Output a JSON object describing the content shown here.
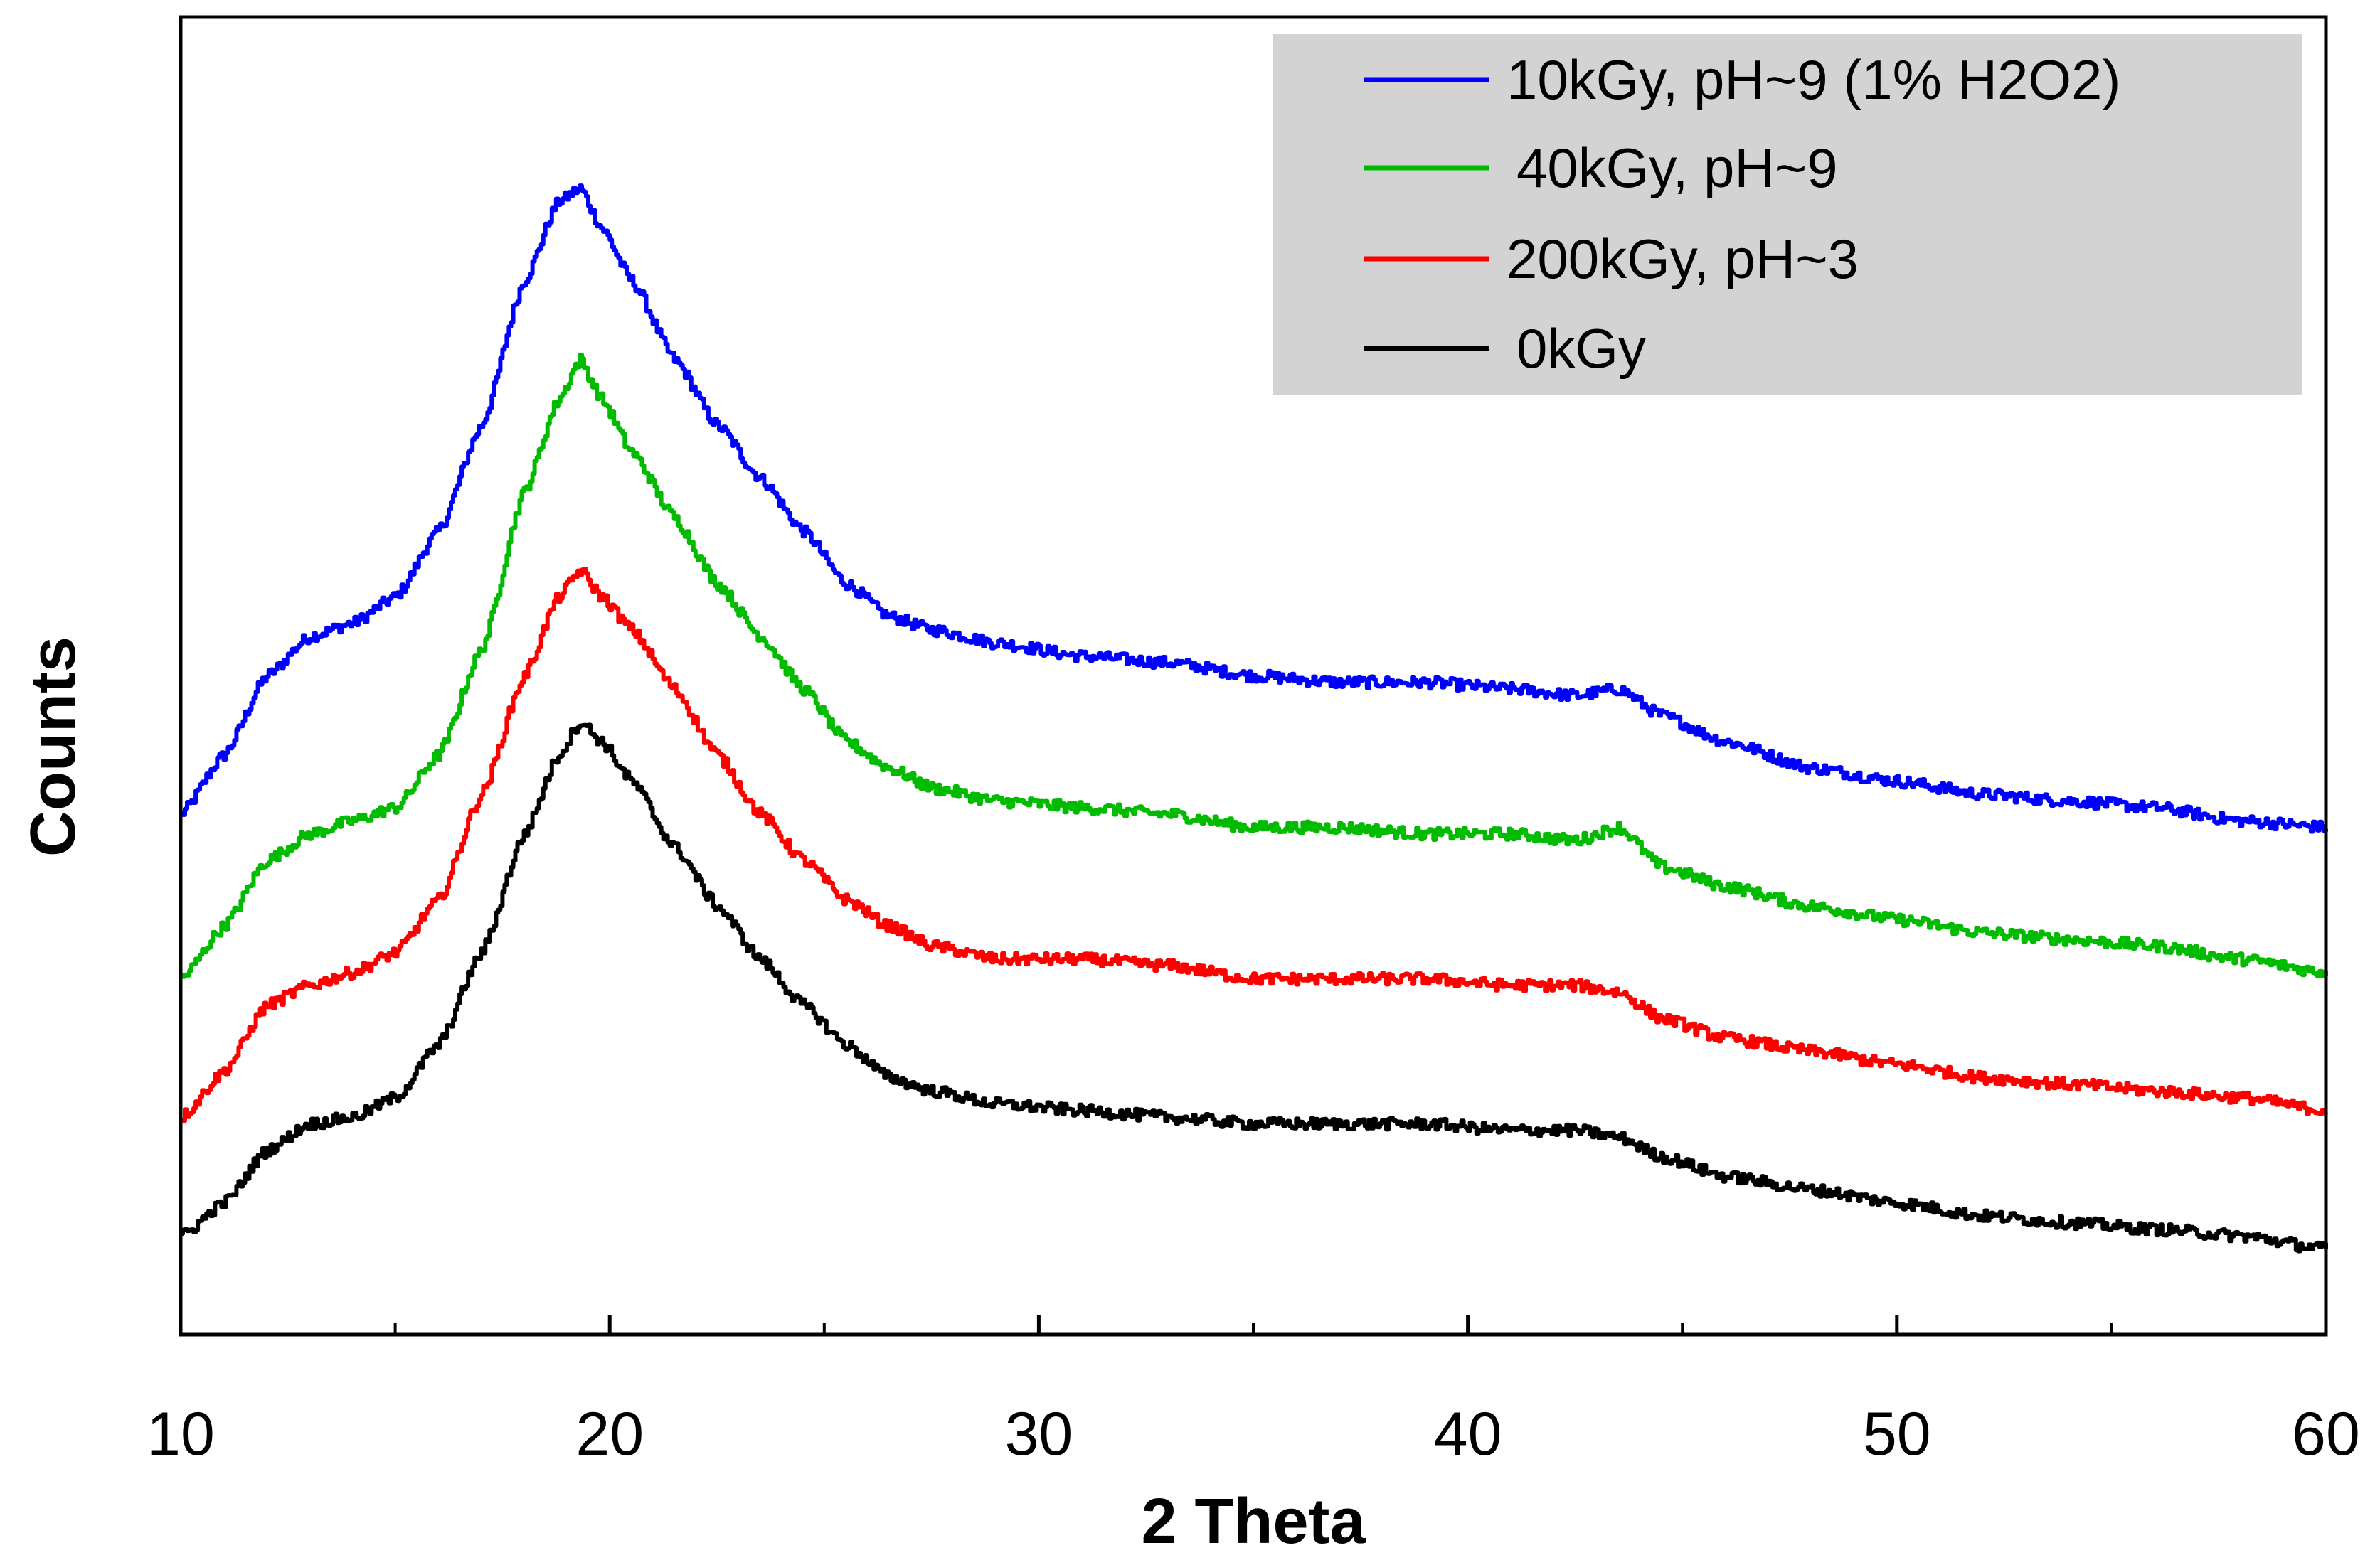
{
  "chart_data": {
    "type": "line",
    "title": "",
    "xlabel": "2 Theta",
    "ylabel": "Counts",
    "xlim": [
      10,
      60
    ],
    "ylim": [
      0,
      100
    ],
    "x_ticks": [
      10,
      20,
      30,
      40,
      50,
      60
    ],
    "x_tick_labels": [
      "10",
      "20",
      "30",
      "40",
      "50",
      "60"
    ],
    "y_ticks_shown": false,
    "grid": false,
    "legend_position": "top-right",
    "legend_background": "#d3d3d3",
    "series": [
      {
        "name": "10kGy, pH~9 (1% H2O2)",
        "label": "10kGy, pH~9 (1% H2O2)",
        "color": "#0000ff",
        "points": [
          [
            10,
            39.5
          ],
          [
            11,
            44
          ],
          [
            12,
            50
          ],
          [
            13,
            53
          ],
          [
            14,
            54
          ],
          [
            15,
            56
          ],
          [
            16,
            61
          ],
          [
            17,
            69
          ],
          [
            18,
            80
          ],
          [
            18.8,
            86
          ],
          [
            19.3,
            87
          ],
          [
            19.8,
            84
          ],
          [
            20.5,
            80
          ],
          [
            21.5,
            74
          ],
          [
            22.5,
            69
          ],
          [
            23.5,
            65
          ],
          [
            24.5,
            61
          ],
          [
            25.5,
            57
          ],
          [
            26.5,
            54.5
          ],
          [
            27.5,
            53.5
          ],
          [
            29,
            52.5
          ],
          [
            31,
            51.5
          ],
          [
            33,
            51
          ],
          [
            35,
            50
          ],
          [
            37,
            49.5
          ],
          [
            39,
            49.5
          ],
          [
            41,
            49
          ],
          [
            42.5,
            48.5
          ],
          [
            43.5,
            49
          ],
          [
            44.5,
            47
          ],
          [
            46,
            45
          ],
          [
            48,
            43
          ],
          [
            50,
            42
          ],
          [
            52,
            41
          ],
          [
            54,
            40.5
          ],
          [
            56,
            40
          ],
          [
            58,
            39
          ],
          [
            60,
            38.5
          ]
        ]
      },
      {
        "name": "40kGy, pH~9",
        "label": "40kGy, pH~9",
        "color": "#00bb00",
        "points": [
          [
            10,
            27
          ],
          [
            11,
            31
          ],
          [
            12,
            36
          ],
          [
            13,
            38
          ],
          [
            14,
            39
          ],
          [
            15,
            40
          ],
          [
            16,
            44
          ],
          [
            17,
            52
          ],
          [
            18,
            64
          ],
          [
            18.8,
            71
          ],
          [
            19.3,
            74
          ],
          [
            19.8,
            71
          ],
          [
            20.5,
            67
          ],
          [
            21.5,
            62
          ],
          [
            22.5,
            57
          ],
          [
            23.5,
            53
          ],
          [
            24.5,
            49
          ],
          [
            25.5,
            45
          ],
          [
            26.5,
            43
          ],
          [
            27.5,
            41.5
          ],
          [
            29,
            40.5
          ],
          [
            31,
            40
          ],
          [
            33,
            39.5
          ],
          [
            35,
            38.5
          ],
          [
            37,
            38.5
          ],
          [
            39,
            38
          ],
          [
            41,
            38
          ],
          [
            42.5,
            37.5
          ],
          [
            43.5,
            38.5
          ],
          [
            44.5,
            35.5
          ],
          [
            46,
            34
          ],
          [
            48,
            32.5
          ],
          [
            50,
            31.5
          ],
          [
            52,
            30.5
          ],
          [
            54,
            30
          ],
          [
            56,
            29.5
          ],
          [
            58,
            28.5
          ],
          [
            60,
            27.5
          ]
        ]
      },
      {
        "name": "200kGy, pH~3",
        "label": "200kGy, pH~3",
        "color": "#ff0000",
        "points": [
          [
            10,
            16.5
          ],
          [
            11,
            20
          ],
          [
            12,
            25
          ],
          [
            13,
            26.5
          ],
          [
            14,
            27.5
          ],
          [
            15,
            29
          ],
          [
            16,
            33
          ],
          [
            17,
            41
          ],
          [
            18,
            50
          ],
          [
            18.8,
            56
          ],
          [
            19.3,
            58
          ],
          [
            19.8,
            56
          ],
          [
            20.5,
            53.5
          ],
          [
            21.5,
            49
          ],
          [
            22.5,
            44
          ],
          [
            23.5,
            39.5
          ],
          [
            24.5,
            36
          ],
          [
            25.5,
            33
          ],
          [
            26.5,
            31
          ],
          [
            27.5,
            29.5
          ],
          [
            29,
            28.5
          ],
          [
            31,
            28.5
          ],
          [
            33,
            28
          ],
          [
            35,
            27
          ],
          [
            37,
            27
          ],
          [
            39,
            27
          ],
          [
            41,
            26.5
          ],
          [
            42.5,
            26.5
          ],
          [
            43.5,
            26
          ],
          [
            44.5,
            24
          ],
          [
            46,
            22.5
          ],
          [
            48,
            21.5
          ],
          [
            50,
            20.5
          ],
          [
            52,
            19.5
          ],
          [
            54,
            19
          ],
          [
            56,
            18.5
          ],
          [
            58,
            18
          ],
          [
            60,
            17
          ]
        ]
      },
      {
        "name": "0kGy",
        "label": "0kGy",
        "color": "#000000",
        "points": [
          [
            10,
            7.5
          ],
          [
            11,
            10
          ],
          [
            12,
            14
          ],
          [
            13,
            16
          ],
          [
            14,
            16.5
          ],
          [
            15,
            18
          ],
          [
            16,
            22
          ],
          [
            17,
            29
          ],
          [
            18,
            38
          ],
          [
            18.8,
            44
          ],
          [
            19.3,
            46.5
          ],
          [
            19.8,
            45
          ],
          [
            20.5,
            42
          ],
          [
            21.5,
            37
          ],
          [
            22.5,
            32.5
          ],
          [
            23.5,
            28.5
          ],
          [
            24.5,
            25
          ],
          [
            25.5,
            22
          ],
          [
            26.5,
            19.5
          ],
          [
            27.5,
            18.5
          ],
          [
            29,
            17.5
          ],
          [
            31,
            17
          ],
          [
            33,
            16.5
          ],
          [
            35,
            16
          ],
          [
            37,
            16
          ],
          [
            39,
            16
          ],
          [
            41,
            15.5
          ],
          [
            42.5,
            15.5
          ],
          [
            43.5,
            15
          ],
          [
            44.5,
            13.5
          ],
          [
            46,
            12
          ],
          [
            48,
            11
          ],
          [
            50,
            10
          ],
          [
            52,
            9
          ],
          [
            54,
            8.5
          ],
          [
            56,
            8
          ],
          [
            58,
            7.5
          ],
          [
            60,
            6.5
          ]
        ]
      }
    ]
  }
}
